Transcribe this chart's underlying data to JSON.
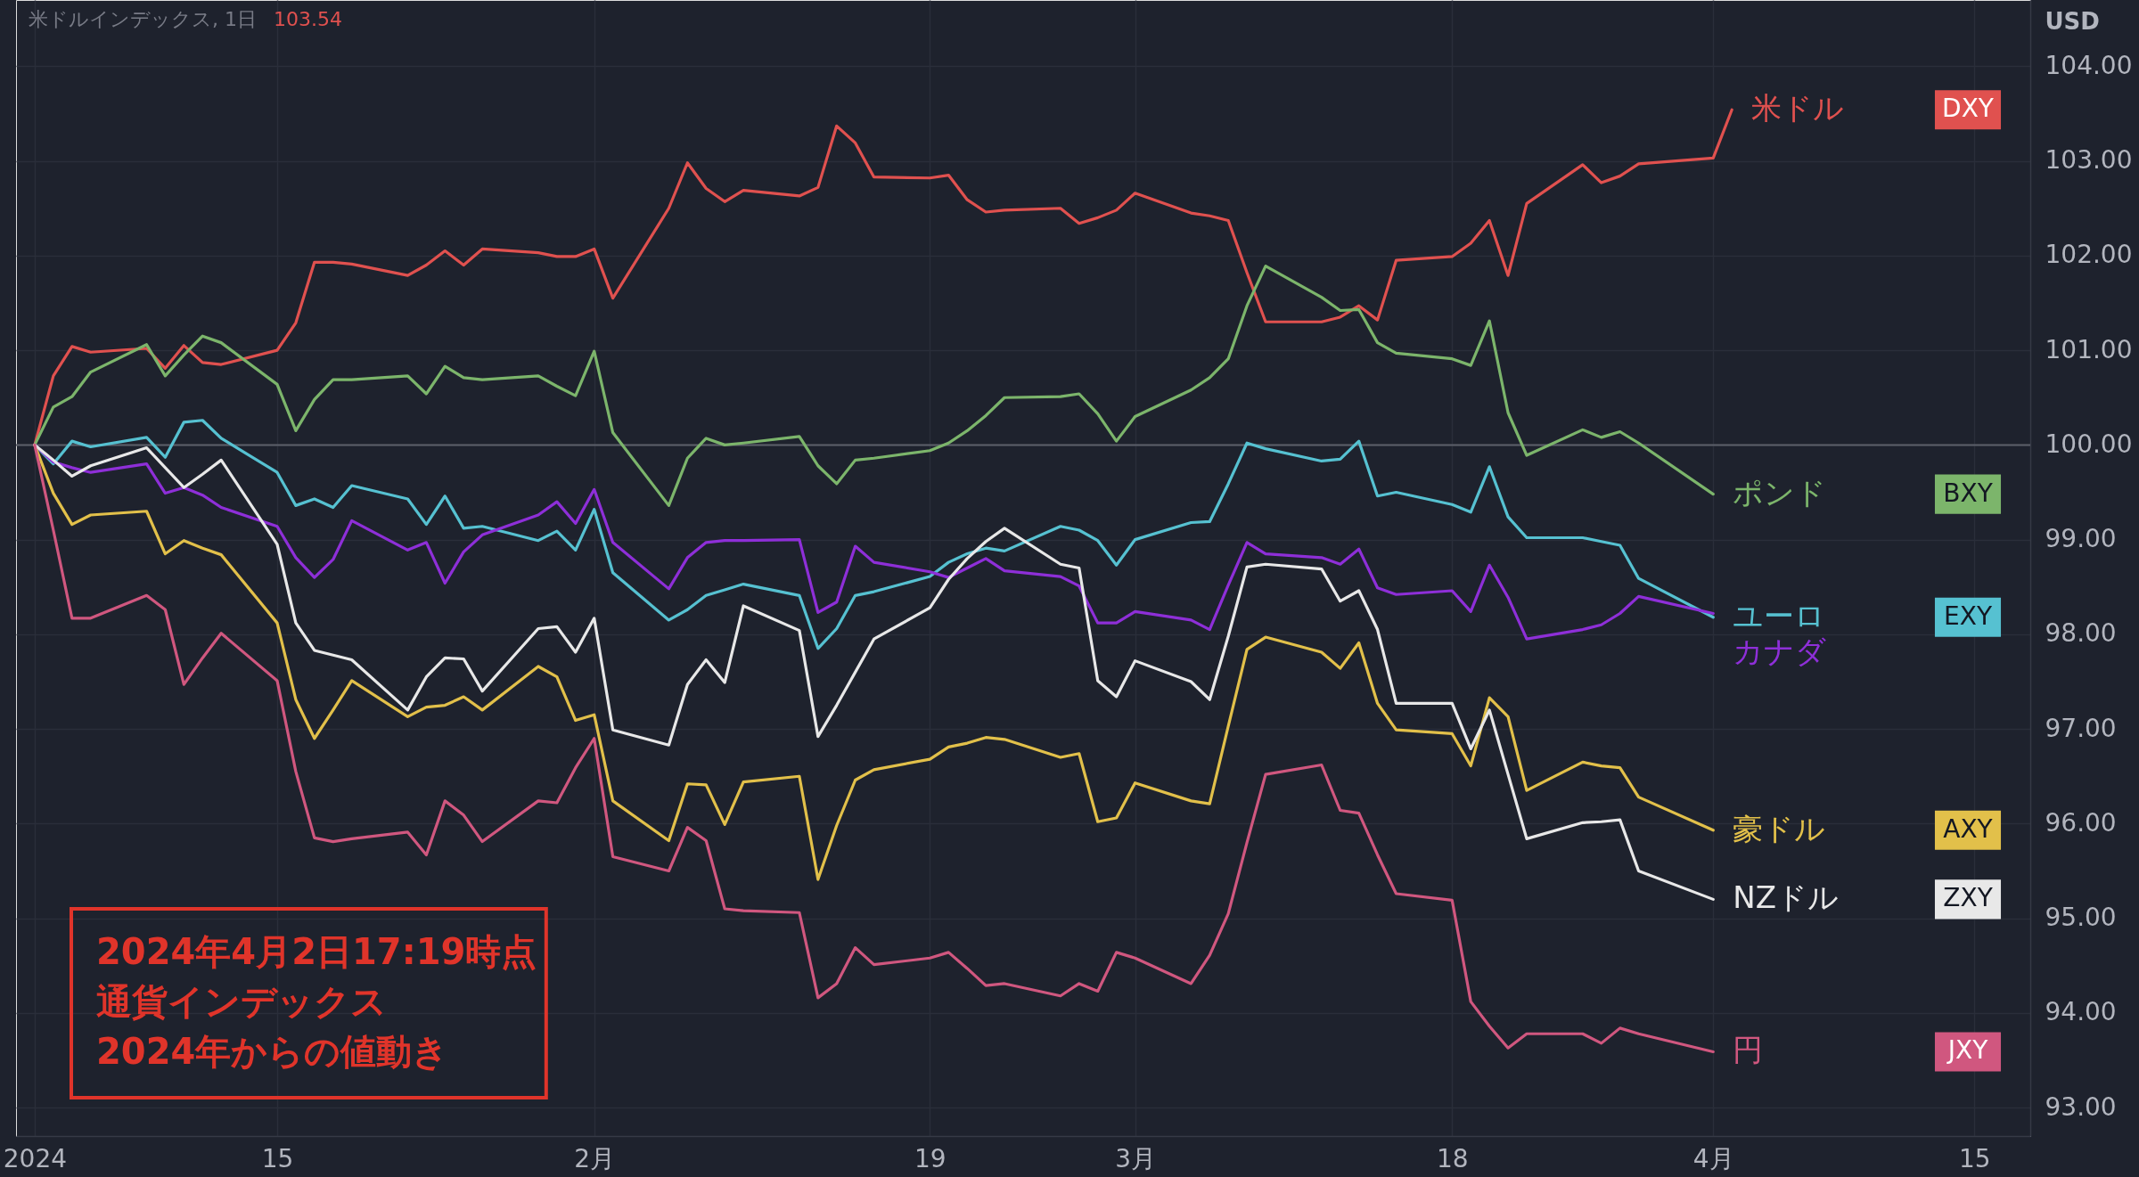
{
  "chart_data": {
    "type": "line",
    "title": "米ドルインデックス, 1日",
    "subtitle": "103.54",
    "ylabel": "USD",
    "x": [
      "2024-01-02",
      "2024-01-03",
      "2024-01-04",
      "2024-01-05",
      "2024-01-08",
      "2024-01-09",
      "2024-01-10",
      "2024-01-11",
      "2024-01-12",
      "2024-01-15",
      "2024-01-16",
      "2024-01-17",
      "2024-01-18",
      "2024-01-19",
      "2024-01-22",
      "2024-01-23",
      "2024-01-24",
      "2024-01-25",
      "2024-01-26",
      "2024-01-29",
      "2024-01-30",
      "2024-01-31",
      "2024-02-01",
      "2024-02-02",
      "2024-02-05",
      "2024-02-06",
      "2024-02-07",
      "2024-02-08",
      "2024-02-09",
      "2024-02-12",
      "2024-02-13",
      "2024-02-14",
      "2024-02-15",
      "2024-02-16",
      "2024-02-19",
      "2024-02-20",
      "2024-02-21",
      "2024-02-22",
      "2024-02-23",
      "2024-02-26",
      "2024-02-27",
      "2024-02-28",
      "2024-02-29",
      "2024-03-01",
      "2024-03-04",
      "2024-03-05",
      "2024-03-06",
      "2024-03-07",
      "2024-03-08",
      "2024-03-11",
      "2024-03-12",
      "2024-03-13",
      "2024-03-14",
      "2024-03-15",
      "2024-03-18",
      "2024-03-19",
      "2024-03-20",
      "2024-03-21",
      "2024-03-22",
      "2024-03-25",
      "2024-03-26",
      "2024-03-27",
      "2024-03-28",
      "2024-04-01",
      "2024-04-02"
    ],
    "series": [
      {
        "name": "米ドル",
        "color": "#e0514f",
        "values": [
          100.0,
          100.73,
          101.04,
          100.98,
          101.02,
          100.81,
          101.05,
          100.87,
          100.85,
          101.0,
          101.29,
          101.93,
          101.93,
          101.91,
          101.79,
          101.9,
          102.05,
          101.9,
          102.07,
          102.03,
          101.99,
          101.99,
          102.07,
          101.55,
          102.5,
          102.98,
          102.71,
          102.57,
          102.69,
          102.63,
          102.72,
          103.37,
          103.19,
          102.83,
          102.82,
          102.85,
          102.59,
          102.46,
          102.48,
          102.5,
          102.34,
          102.4,
          102.48,
          102.66,
          102.45,
          102.42,
          102.37,
          101.82,
          101.3,
          101.3,
          101.35,
          101.47,
          101.32,
          101.95,
          101.99,
          102.13,
          102.37,
          101.79,
          102.55,
          102.96,
          102.77,
          102.84,
          102.97,
          103.03,
          103.54
        ]
      },
      {
        "name": "ポンド",
        "color": "#7cb56b",
        "values": [
          100.0,
          100.4,
          100.51,
          100.77,
          101.06,
          100.73,
          100.95,
          101.15,
          101.08,
          100.64,
          100.15,
          100.48,
          100.69,
          100.69,
          100.73,
          100.54,
          100.83,
          100.71,
          100.69,
          100.73,
          100.62,
          100.52,
          100.99,
          100.13,
          99.36,
          99.86,
          100.07,
          100.0,
          100.02,
          100.09,
          99.78,
          99.59,
          99.84,
          99.86,
          99.94,
          100.02,
          100.15,
          100.31,
          100.5,
          100.51,
          100.54,
          100.33,
          100.04,
          100.3,
          100.58,
          100.71,
          100.91,
          101.47,
          101.89,
          101.56,
          101.42,
          101.43,
          101.08,
          100.97,
          100.91,
          100.84,
          101.31,
          100.34,
          99.89,
          100.16,
          100.08,
          100.14,
          100.02,
          99.48,
          null
        ]
      },
      {
        "name": "ユーロ",
        "color": "#56c1d1",
        "values": [
          100.0,
          99.8,
          100.04,
          99.98,
          100.08,
          99.87,
          100.24,
          100.26,
          100.07,
          99.71,
          99.36,
          99.43,
          99.34,
          99.57,
          99.43,
          99.16,
          99.46,
          99.12,
          99.14,
          98.99,
          99.09,
          98.89,
          99.32,
          98.65,
          98.15,
          98.26,
          98.41,
          98.47,
          98.53,
          98.41,
          97.85,
          98.06,
          98.41,
          98.45,
          98.61,
          98.76,
          98.85,
          98.91,
          98.88,
          99.14,
          99.1,
          98.99,
          98.73,
          99.0,
          99.18,
          99.19,
          99.59,
          100.02,
          99.96,
          99.83,
          99.85,
          100.04,
          99.46,
          99.5,
          99.37,
          99.29,
          99.77,
          99.24,
          99.02,
          99.02,
          98.98,
          98.94,
          98.59,
          98.18,
          null
        ]
      },
      {
        "name": "カナダ",
        "color": "#8e2fd8",
        "values": [
          100.0,
          99.82,
          99.76,
          99.71,
          99.8,
          99.49,
          99.55,
          99.47,
          99.34,
          99.14,
          98.81,
          98.6,
          98.79,
          99.2,
          98.89,
          98.97,
          98.54,
          98.87,
          99.05,
          99.26,
          99.4,
          99.17,
          99.53,
          98.97,
          98.48,
          98.81,
          98.97,
          98.99,
          98.99,
          99.0,
          98.23,
          98.34,
          98.93,
          98.76,
          98.66,
          98.6,
          98.7,
          98.8,
          98.67,
          98.61,
          98.51,
          98.12,
          98.12,
          98.24,
          98.15,
          98.05,
          98.52,
          98.97,
          98.85,
          98.81,
          98.74,
          98.9,
          98.49,
          98.42,
          98.46,
          98.24,
          98.73,
          98.39,
          97.95,
          98.05,
          98.1,
          98.22,
          98.4,
          98.22,
          null
        ]
      },
      {
        "name": "豪ドル",
        "color": "#e2c04a",
        "values": [
          100.0,
          99.49,
          99.16,
          99.26,
          99.3,
          98.85,
          98.99,
          98.91,
          98.84,
          98.12,
          97.31,
          96.9,
          97.2,
          97.51,
          97.13,
          97.23,
          97.25,
          97.34,
          97.2,
          97.66,
          97.55,
          97.09,
          97.15,
          96.24,
          95.82,
          96.42,
          96.41,
          95.99,
          96.44,
          96.5,
          95.41,
          95.98,
          96.46,
          96.57,
          96.68,
          96.81,
          96.85,
          96.91,
          96.89,
          96.7,
          96.74,
          96.02,
          96.06,
          96.43,
          96.24,
          96.21,
          97.03,
          97.84,
          97.97,
          97.81,
          97.64,
          97.91,
          97.27,
          96.99,
          96.95,
          96.61,
          97.33,
          97.13,
          96.35,
          96.65,
          96.61,
          96.59,
          96.28,
          95.93,
          null
        ]
      },
      {
        "name": "NZドル",
        "color": "#e8e8e8",
        "values": [
          100.0,
          99.84,
          99.67,
          99.78,
          99.97,
          99.76,
          99.55,
          99.69,
          99.84,
          98.95,
          98.12,
          97.83,
          97.78,
          97.73,
          97.2,
          97.55,
          97.75,
          97.74,
          97.4,
          98.06,
          98.08,
          97.81,
          98.17,
          96.99,
          96.83,
          97.47,
          97.73,
          97.49,
          98.3,
          98.04,
          96.92,
          97.25,
          97.6,
          97.95,
          98.28,
          98.58,
          98.8,
          98.98,
          99.12,
          98.74,
          98.7,
          97.51,
          97.34,
          97.72,
          97.5,
          97.31,
          97.98,
          98.71,
          98.74,
          98.69,
          98.35,
          98.46,
          98.05,
          97.27,
          97.27,
          96.79,
          97.2,
          96.52,
          95.84,
          96.01,
          96.02,
          96.04,
          95.5,
          95.2,
          null
        ]
      },
      {
        "name": "円",
        "color": "#d0577f",
        "values": [
          100.0,
          99.1,
          98.17,
          98.17,
          98.41,
          98.26,
          97.47,
          97.75,
          98.01,
          97.51,
          96.55,
          95.85,
          95.81,
          95.84,
          95.91,
          95.67,
          96.24,
          96.09,
          95.81,
          96.24,
          96.22,
          96.59,
          96.9,
          95.65,
          95.5,
          95.96,
          95.82,
          95.1,
          95.08,
          95.06,
          94.16,
          94.31,
          94.69,
          94.51,
          94.58,
          94.64,
          94.47,
          94.29,
          94.31,
          94.18,
          94.31,
          94.23,
          94.64,
          94.58,
          94.31,
          94.61,
          95.05,
          95.8,
          96.52,
          96.62,
          96.14,
          96.11,
          95.67,
          95.26,
          95.19,
          94.12,
          93.86,
          93.63,
          93.78,
          93.78,
          93.68,
          93.84,
          93.78,
          93.59,
          null
        ]
      }
    ],
    "xlim": [
      "2024-01-01",
      "2024-04-18"
    ],
    "xticks": [
      {
        "value": "2024-01-02",
        "label": "2024"
      },
      {
        "value": "2024-01-15",
        "label": "15"
      },
      {
        "value": "2024-02-01",
        "label": "2月"
      },
      {
        "value": "2024-02-19",
        "label": "19"
      },
      {
        "value": "2024-03-01",
        "label": "3月"
      },
      {
        "value": "2024-03-18",
        "label": "18"
      },
      {
        "value": "2024-04-01",
        "label": "4月"
      },
      {
        "value": "2024-04-15",
        "label": "15"
      }
    ],
    "ylim": [
      92.7,
      104.7
    ],
    "yticks": [
      {
        "value": 93,
        "label": "93.00"
      },
      {
        "value": 94,
        "label": "94.00"
      },
      {
        "value": 95,
        "label": "95.00"
      },
      {
        "value": 96,
        "label": "96.00"
      },
      {
        "value": 97,
        "label": "97.00"
      },
      {
        "value": 98,
        "label": "98.00"
      },
      {
        "value": 99,
        "label": "99.00"
      },
      {
        "value": 100,
        "label": "100.00"
      },
      {
        "value": 101,
        "label": "101.00"
      },
      {
        "value": 102,
        "label": "102.00"
      },
      {
        "value": 103,
        "label": "103.00"
      },
      {
        "value": 104,
        "label": "104.00"
      }
    ],
    "grid": true,
    "legend": false,
    "line_style": "solid",
    "ref_lines": [
      {
        "axis": "y",
        "value": 100,
        "color": "#5d606b"
      }
    ],
    "annotations": [
      "2024年4月2日17:19時点",
      "通貨インデックス",
      "2024年からの値動き",
      "DXY",
      "BXY",
      "EXY",
      "AXY",
      "ZXY",
      "JXY"
    ]
  }
}
